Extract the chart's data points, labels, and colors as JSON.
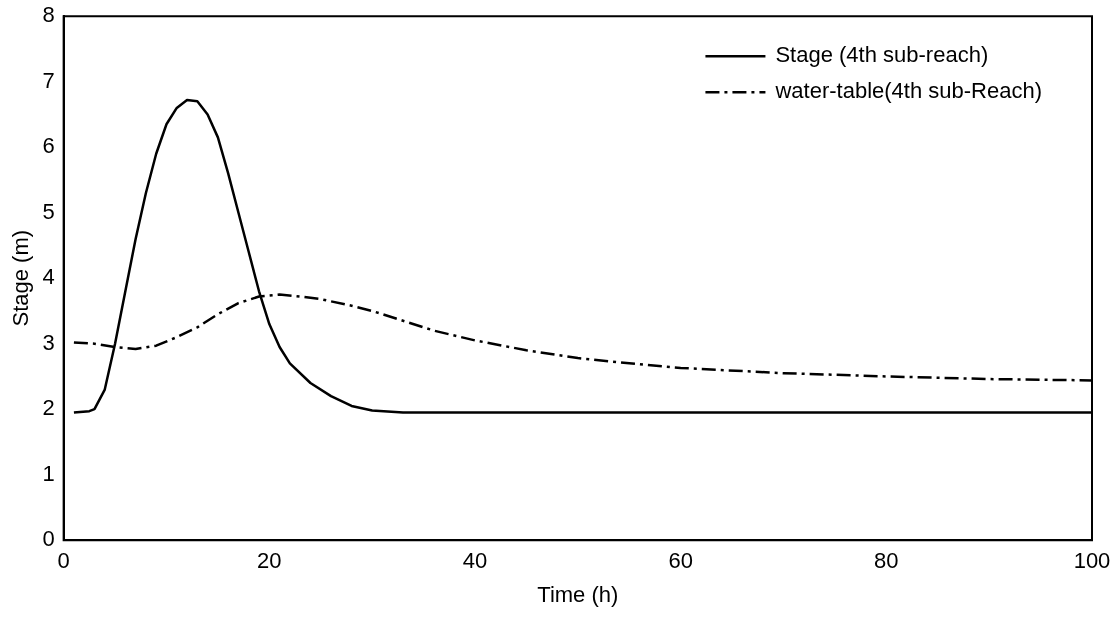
{
  "chart_data": {
    "type": "line",
    "xlabel": "Time (h)",
    "ylabel": "Stage (m)",
    "xlim": [
      0,
      100
    ],
    "ylim": [
      0,
      8
    ],
    "xticks": [
      0,
      20,
      40,
      60,
      80,
      100
    ],
    "yticks": [
      0,
      1,
      2,
      3,
      4,
      5,
      6,
      7,
      8
    ],
    "grid": false,
    "legend": "top right",
    "marker": "none",
    "series": [
      {
        "name": "Stage (4th sub-reach)",
        "color": "#000000",
        "line_style": "solid",
        "x": [
          1,
          2.5,
          3,
          4,
          5,
          6,
          7,
          8,
          9,
          10,
          11,
          12,
          13,
          14,
          15,
          16,
          17,
          18,
          19,
          20,
          21,
          22,
          24,
          26,
          28,
          30,
          33,
          100
        ],
        "values": [
          1.95,
          1.97,
          2.0,
          2.3,
          3.0,
          3.8,
          4.6,
          5.3,
          5.9,
          6.35,
          6.6,
          6.72,
          6.7,
          6.5,
          6.15,
          5.6,
          5.0,
          4.4,
          3.8,
          3.3,
          2.95,
          2.7,
          2.4,
          2.2,
          2.05,
          1.98,
          1.95,
          1.95
        ]
      },
      {
        "name": "water-table(4th sub-Reach)",
        "color": "#000000",
        "line_style": "dashdot",
        "x": [
          1,
          3,
          5,
          7,
          9,
          11,
          13,
          15,
          17,
          19,
          21,
          23,
          25,
          28,
          30,
          33,
          36,
          40,
          45,
          50,
          55,
          60,
          70,
          80,
          90,
          100
        ],
        "values": [
          3.02,
          3.0,
          2.95,
          2.92,
          2.97,
          3.1,
          3.25,
          3.45,
          3.62,
          3.72,
          3.75,
          3.72,
          3.68,
          3.58,
          3.5,
          3.35,
          3.2,
          3.05,
          2.9,
          2.78,
          2.7,
          2.63,
          2.55,
          2.5,
          2.46,
          2.44
        ]
      }
    ]
  }
}
